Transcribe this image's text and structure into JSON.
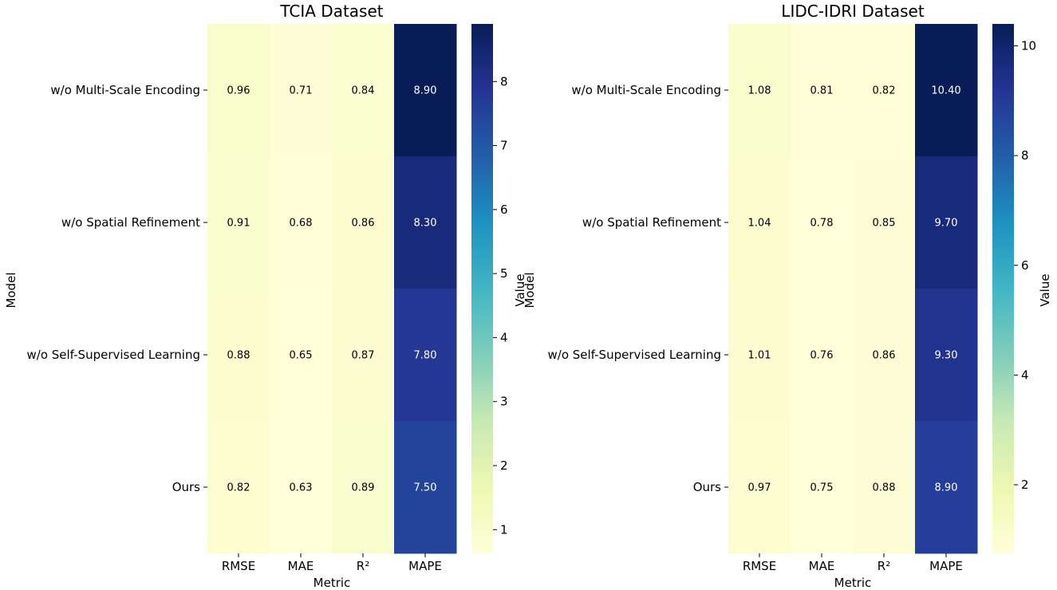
{
  "chart_data": [
    {
      "type": "heatmap",
      "title": "TCIA Dataset",
      "xlabel": "Metric",
      "ylabel": "Model",
      "columns": [
        "RMSE",
        "MAE",
        "R²",
        "MAPE"
      ],
      "rows": [
        "w/o Multi-Scale Encoding",
        "w/o Spatial Refinement",
        "w/o Self-Supervised Learning",
        "Ours"
      ],
      "values": [
        [
          0.96,
          0.71,
          0.84,
          8.9
        ],
        [
          0.91,
          0.68,
          0.86,
          8.3
        ],
        [
          0.88,
          0.65,
          0.87,
          7.8
        ],
        [
          0.82,
          0.63,
          0.89,
          7.5
        ]
      ],
      "labels": [
        [
          "0.96",
          "0.71",
          "0.84",
          "8.90"
        ],
        [
          "0.91",
          "0.68",
          "0.86",
          "8.30"
        ],
        [
          "0.88",
          "0.65",
          "0.87",
          "7.80"
        ],
        [
          "0.82",
          "0.63",
          "0.89",
          "7.50"
        ]
      ],
      "colormap": "YlGnBu",
      "colorbar": {
        "label": "Value",
        "vmin": 0.63,
        "vmax": 8.9,
        "ticks": [
          1,
          2,
          3,
          4,
          5,
          6,
          7,
          8
        ]
      }
    },
    {
      "type": "heatmap",
      "title": "LIDC-IDRI Dataset",
      "xlabel": "Metric",
      "ylabel": "Model",
      "columns": [
        "RMSE",
        "MAE",
        "R²",
        "MAPE"
      ],
      "rows": [
        "w/o Multi-Scale Encoding",
        "w/o Spatial Refinement",
        "w/o Self-Supervised Learning",
        "Ours"
      ],
      "values": [
        [
          1.08,
          0.81,
          0.82,
          10.4
        ],
        [
          1.04,
          0.78,
          0.85,
          9.7
        ],
        [
          1.01,
          0.76,
          0.86,
          9.3
        ],
        [
          0.97,
          0.75,
          0.88,
          8.9
        ]
      ],
      "labels": [
        [
          "1.08",
          "0.81",
          "0.82",
          "10.40"
        ],
        [
          "1.04",
          "0.78",
          "0.85",
          "9.70"
        ],
        [
          "1.01",
          "0.76",
          "0.86",
          "9.30"
        ],
        [
          "0.97",
          "0.75",
          "0.88",
          "8.90"
        ]
      ],
      "colormap": "YlGnBu",
      "colorbar": {
        "label": "Value",
        "vmin": 0.75,
        "vmax": 10.4,
        "ticks": [
          2,
          4,
          6,
          8,
          10
        ]
      }
    }
  ]
}
